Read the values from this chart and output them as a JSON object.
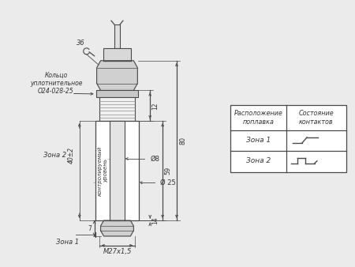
{
  "bg_color": "#ebebeb",
  "line_color": "#4a4a4a",
  "text_color": "#333333",
  "table_header1": "Расположение\nпоплавка",
  "table_header2": "Состояние\nконтактов",
  "table_row1_col1": "Зона 1",
  "table_row2_col1": "Зона 2",
  "label_koltso": "Кольцо\nуплотнительное\nО24-028-25",
  "label_zona1": "Зона 1",
  "label_zona2": "Зона 2",
  "label_36": "36",
  "label_kontrol": "контролируемый\nуровень",
  "label_40": "40±2",
  "label_d8": "Ø8",
  "label_d25": "Ø 25",
  "label_m27": "M27x1,5",
  "label_12": "12",
  "label_59": "59",
  "label_14": "14",
  "label_80": "80",
  "label_7": "7"
}
